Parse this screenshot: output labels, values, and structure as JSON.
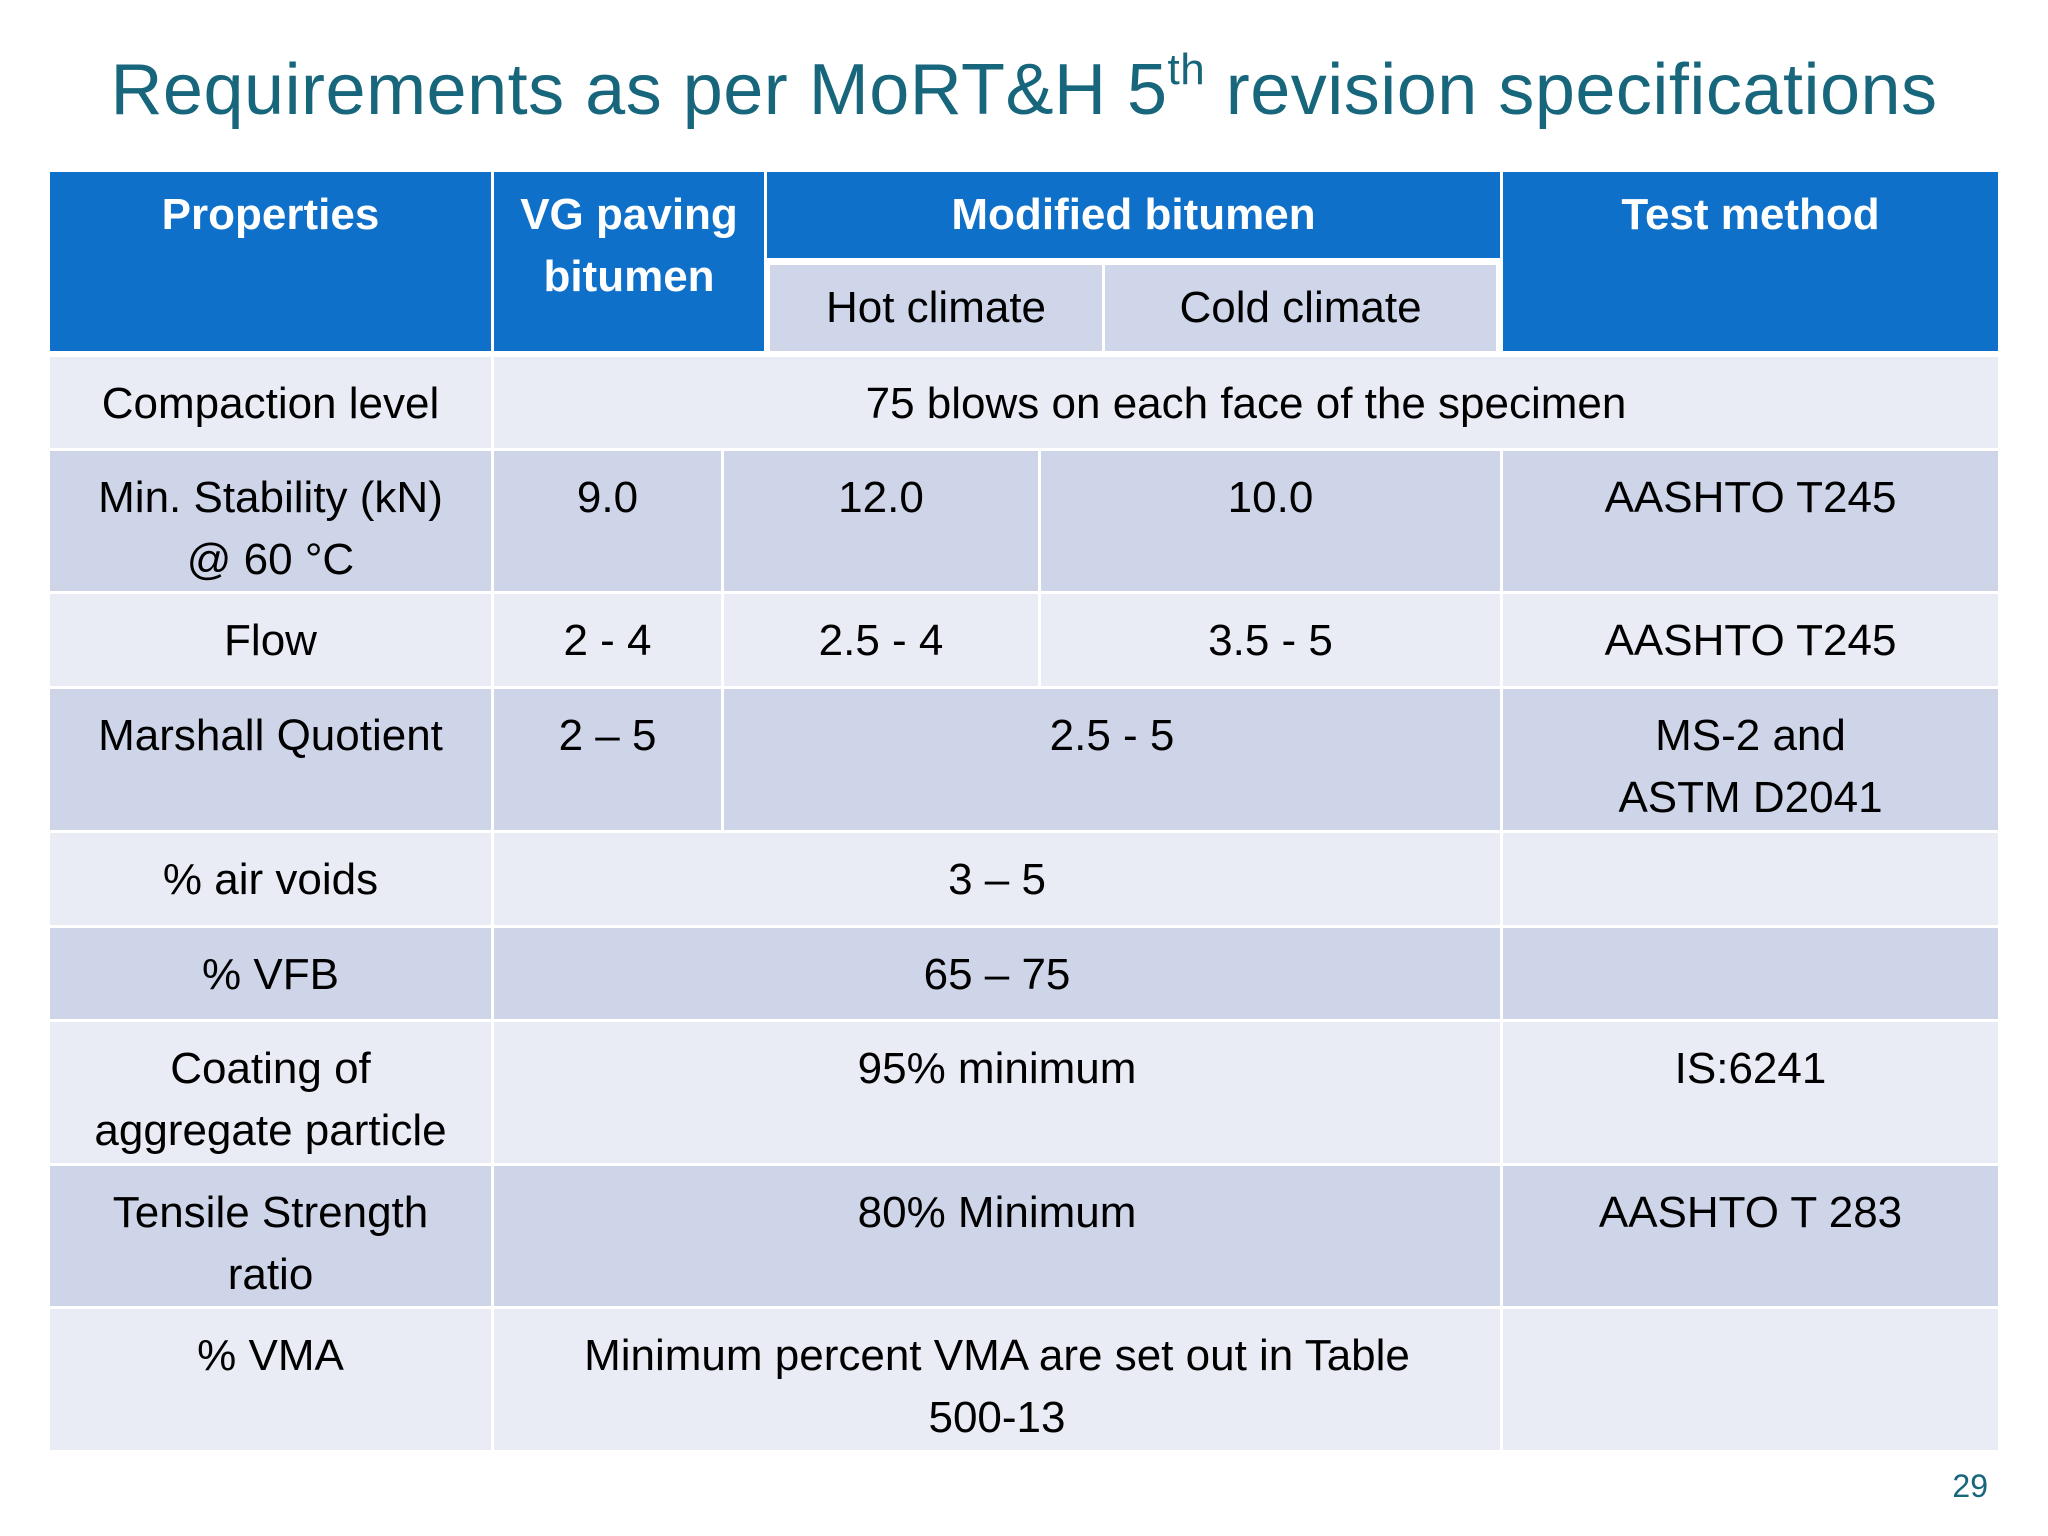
{
  "slide": {
    "title": "Requirements as per MoRT&H 5",
    "title_superscript": "th",
    "title_suffix": " revision specifications",
    "page_number": "29"
  },
  "table": {
    "headers": {
      "properties": "Properties",
      "vg_paving_line1": "VG paving",
      "vg_paving_line2": "bitumen",
      "modified_bitumen": "Modified bitumen",
      "hot_climate": "Hot climate",
      "cold_climate": "Cold climate",
      "test_method": "Test method"
    },
    "rows": [
      {
        "property": "Compaction level",
        "value": "75 blows on each face of the specimen"
      },
      {
        "property_line1": "Min. Stability (kN)",
        "property_line2": "@ 60 °C",
        "vg": "9.0",
        "hot": "12.0",
        "cold": "10.0",
        "test": "AASHTO T245"
      },
      {
        "property": "Flow",
        "vg": "2 - 4",
        "hot": "2.5 - 4",
        "cold": "3.5 - 5",
        "test": "AASHTO T245"
      },
      {
        "property": "Marshall Quotient",
        "vg": "2 – 5",
        "modified": "2.5 - 5",
        "test_line1": "MS-2 and",
        "test_line2": "ASTM D2041"
      },
      {
        "property": "% air voids",
        "value": "3 – 5",
        "test": ""
      },
      {
        "property": "% VFB",
        "value": "65 – 75",
        "test": ""
      },
      {
        "property_line1": "Coating of",
        "property_line2": "aggregate particle",
        "value": "95% minimum",
        "test": "IS:6241"
      },
      {
        "property_line1": "Tensile Strength",
        "property_line2": "ratio",
        "value": "80% Minimum",
        "test": "AASHTO T 283"
      },
      {
        "property": "% VMA",
        "value_line1": "Minimum percent VMA are set out in Table",
        "value_line2": "500-13",
        "test": ""
      }
    ]
  },
  "colors": {
    "title": "#17667c",
    "header_blue": "#0e70c8",
    "row_light": "#e9ebf5",
    "row_dark": "#cfd5e8",
    "grid_white": "#ffffff"
  }
}
